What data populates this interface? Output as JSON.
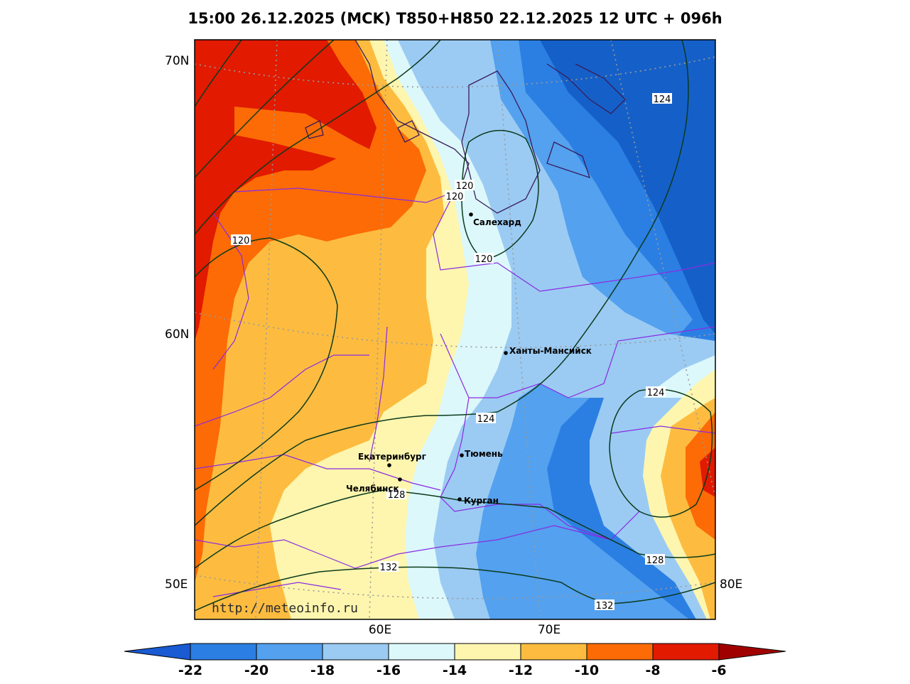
{
  "title": "15:00 26.12.2025 (MCK) T850+H850 22.12.2025 12 UTC + 096h",
  "watermark": "http://meteoinfo.ru",
  "colors": {
    "t22": "#1560c8",
    "t20": "#2b7fe3",
    "t18": "#53a1ef",
    "t16": "#9bcbf3",
    "t14": "#dcf8fb",
    "t12": "#fef6ae",
    "t10": "#fdbc40",
    "t8": "#fc6b05",
    "t6": "#e11a00",
    "t_lt22": "#1a5ad2",
    "t_gt6": "#a10000",
    "border": "#8a2be2",
    "coast": "#3a1b5a",
    "isohypse": "#0c3a1c",
    "grid": "#9a9a9a"
  },
  "lat_labels": [
    "70N",
    "60N",
    "50E"
  ],
  "lon_labels": [
    "60E",
    "70E",
    "80E"
  ],
  "cities": [
    {
      "name": "Салехард"
    },
    {
      "name": "Ханты-Мансийск"
    },
    {
      "name": "Екатеринбург"
    },
    {
      "name": "Тюмень"
    },
    {
      "name": "Челябинск"
    },
    {
      "name": "Курган"
    }
  ],
  "isohypse_labels": [
    "120",
    "120",
    "120",
    "120",
    "124",
    "124",
    "124",
    "128",
    "128",
    "132",
    "132"
  ],
  "colorbar": {
    "ticks": [
      "-22",
      "-20",
      "-18",
      "-16",
      "-14",
      "-12",
      "-10",
      "-8",
      "-6"
    ],
    "colors": [
      "#2b7fe3",
      "#53a1ef",
      "#9bcbf3",
      "#dcf8fb",
      "#fef6ae",
      "#fdbc40",
      "#fc6b05",
      "#e11a00"
    ],
    "low_color": "#1a5ad2",
    "high_color": "#a10000"
  }
}
